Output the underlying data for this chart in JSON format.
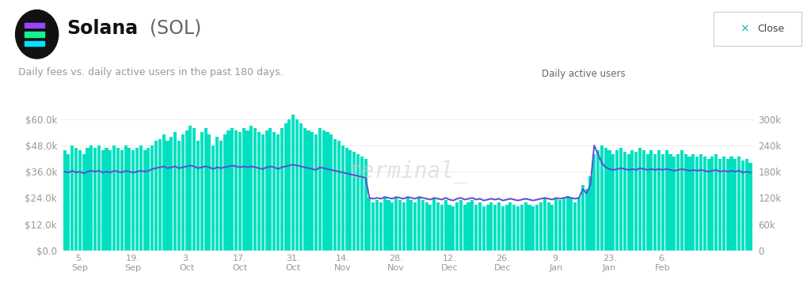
{
  "title_bold": "Solana",
  "title_normal": " (SOL)",
  "subtitle": "Daily fees vs. daily active users in the past 180 days.",
  "legend_label": "Daily active users",
  "bar_color": "#00E0C0",
  "line_color": "#5B4FCF",
  "background_color": "#ffffff",
  "ylim_left": [
    0,
    75000
  ],
  "ylim_right": [
    0,
    375000
  ],
  "yticks_left": [
    0,
    12000,
    24000,
    36000,
    48000,
    60000
  ],
  "yticks_right": [
    0,
    60000,
    120000,
    180000,
    240000,
    300000
  ],
  "ytick_labels_left": [
    "$0.0",
    "$12.0k",
    "$24.0k",
    "$36.0k",
    "$48.0k",
    "$60.0k"
  ],
  "ytick_labels_right": [
    "0",
    "60k",
    "120k",
    "180k",
    "240k",
    "300k"
  ],
  "watermark": "terminal_",
  "x_tick_indices": [
    4,
    18,
    32,
    46,
    60,
    73,
    87,
    101,
    115,
    129,
    143,
    157,
    171
  ],
  "x_tick_labels": [
    "5.\nSep",
    "19.\nSep",
    "3.\nOct",
    "17.\nOct",
    "31.\nOct",
    "14.\nNov",
    "28.\nNov",
    "12.\nDec",
    "26.\nDec",
    "9.\nJan",
    "23.\nJan",
    "6.\nFeb",
    ""
  ],
  "fees": [
    46000,
    44000,
    48000,
    47000,
    46000,
    44000,
    47000,
    48000,
    47000,
    48000,
    46000,
    47000,
    46000,
    48000,
    47000,
    46000,
    48000,
    47000,
    46000,
    47000,
    48000,
    46000,
    47000,
    48000,
    50000,
    51000,
    53000,
    50000,
    52000,
    54000,
    50000,
    53000,
    55000,
    57000,
    56000,
    50000,
    54000,
    56000,
    53000,
    48000,
    52000,
    50000,
    53000,
    55000,
    56000,
    55000,
    54000,
    56000,
    55000,
    57000,
    56000,
    54000,
    53000,
    55000,
    56000,
    54000,
    53000,
    56000,
    58000,
    60000,
    62000,
    60000,
    58000,
    56000,
    55000,
    54000,
    53000,
    56000,
    55000,
    54000,
    53000,
    51000,
    50000,
    48000,
    47000,
    46000,
    45000,
    44000,
    43000,
    42000,
    24000,
    22000,
    23000,
    22000,
    24000,
    23000,
    22000,
    24000,
    23000,
    22000,
    24000,
    23000,
    22000,
    24000,
    23000,
    22000,
    21000,
    24000,
    22000,
    21000,
    23000,
    21000,
    20000,
    22000,
    23000,
    21000,
    22000,
    23000,
    21000,
    22000,
    20000,
    21000,
    22000,
    21000,
    22000,
    20000,
    21000,
    22000,
    21000,
    20000,
    21000,
    22000,
    21000,
    20000,
    21000,
    22000,
    24000,
    22000,
    21000,
    24000,
    23000,
    24000,
    25000,
    24000,
    22000,
    24000,
    30000,
    28000,
    34000,
    44000,
    46000,
    48000,
    47000,
    46000,
    44000,
    46000,
    47000,
    45000,
    44000,
    46000,
    45000,
    47000,
    46000,
    44000,
    46000,
    44000,
    46000,
    44000,
    46000,
    44000,
    43000,
    44000,
    46000,
    44000,
    43000,
    44000,
    43000,
    44000,
    43000,
    42000,
    43000,
    44000,
    42000,
    43000,
    42000,
    43000,
    42000,
    43000,
    41000,
    42000,
    40000
  ],
  "dau": [
    180000,
    178000,
    182000,
    178000,
    180000,
    176000,
    180000,
    182000,
    180000,
    182000,
    178000,
    180000,
    178000,
    182000,
    180000,
    178000,
    182000,
    180000,
    178000,
    180000,
    182000,
    180000,
    182000,
    186000,
    188000,
    190000,
    192000,
    188000,
    190000,
    192000,
    188000,
    190000,
    192000,
    194000,
    192000,
    188000,
    190000,
    192000,
    190000,
    186000,
    190000,
    188000,
    190000,
    192000,
    194000,
    192000,
    190000,
    192000,
    190000,
    192000,
    190000,
    188000,
    186000,
    190000,
    192000,
    190000,
    186000,
    190000,
    192000,
    194000,
    196000,
    194000,
    192000,
    190000,
    188000,
    186000,
    184000,
    190000,
    188000,
    186000,
    184000,
    182000,
    180000,
    178000,
    176000,
    174000,
    172000,
    170000,
    168000,
    166000,
    120000,
    118000,
    120000,
    118000,
    122000,
    120000,
    118000,
    122000,
    120000,
    118000,
    122000,
    120000,
    118000,
    122000,
    120000,
    118000,
    116000,
    120000,
    118000,
    116000,
    120000,
    116000,
    114000,
    118000,
    120000,
    116000,
    118000,
    120000,
    116000,
    118000,
    114000,
    116000,
    118000,
    116000,
    118000,
    114000,
    116000,
    118000,
    116000,
    114000,
    116000,
    118000,
    116000,
    114000,
    116000,
    118000,
    120000,
    118000,
    116000,
    120000,
    118000,
    120000,
    122000,
    120000,
    118000,
    120000,
    140000,
    130000,
    150000,
    240000,
    220000,
    200000,
    190000,
    186000,
    184000,
    186000,
    188000,
    186000,
    184000,
    186000,
    184000,
    188000,
    186000,
    184000,
    186000,
    184000,
    186000,
    184000,
    186000,
    184000,
    182000,
    184000,
    186000,
    184000,
    182000,
    184000,
    182000,
    184000,
    182000,
    180000,
    182000,
    184000,
    180000,
    182000,
    180000,
    182000,
    180000,
    182000,
    178000,
    180000,
    178000
  ]
}
